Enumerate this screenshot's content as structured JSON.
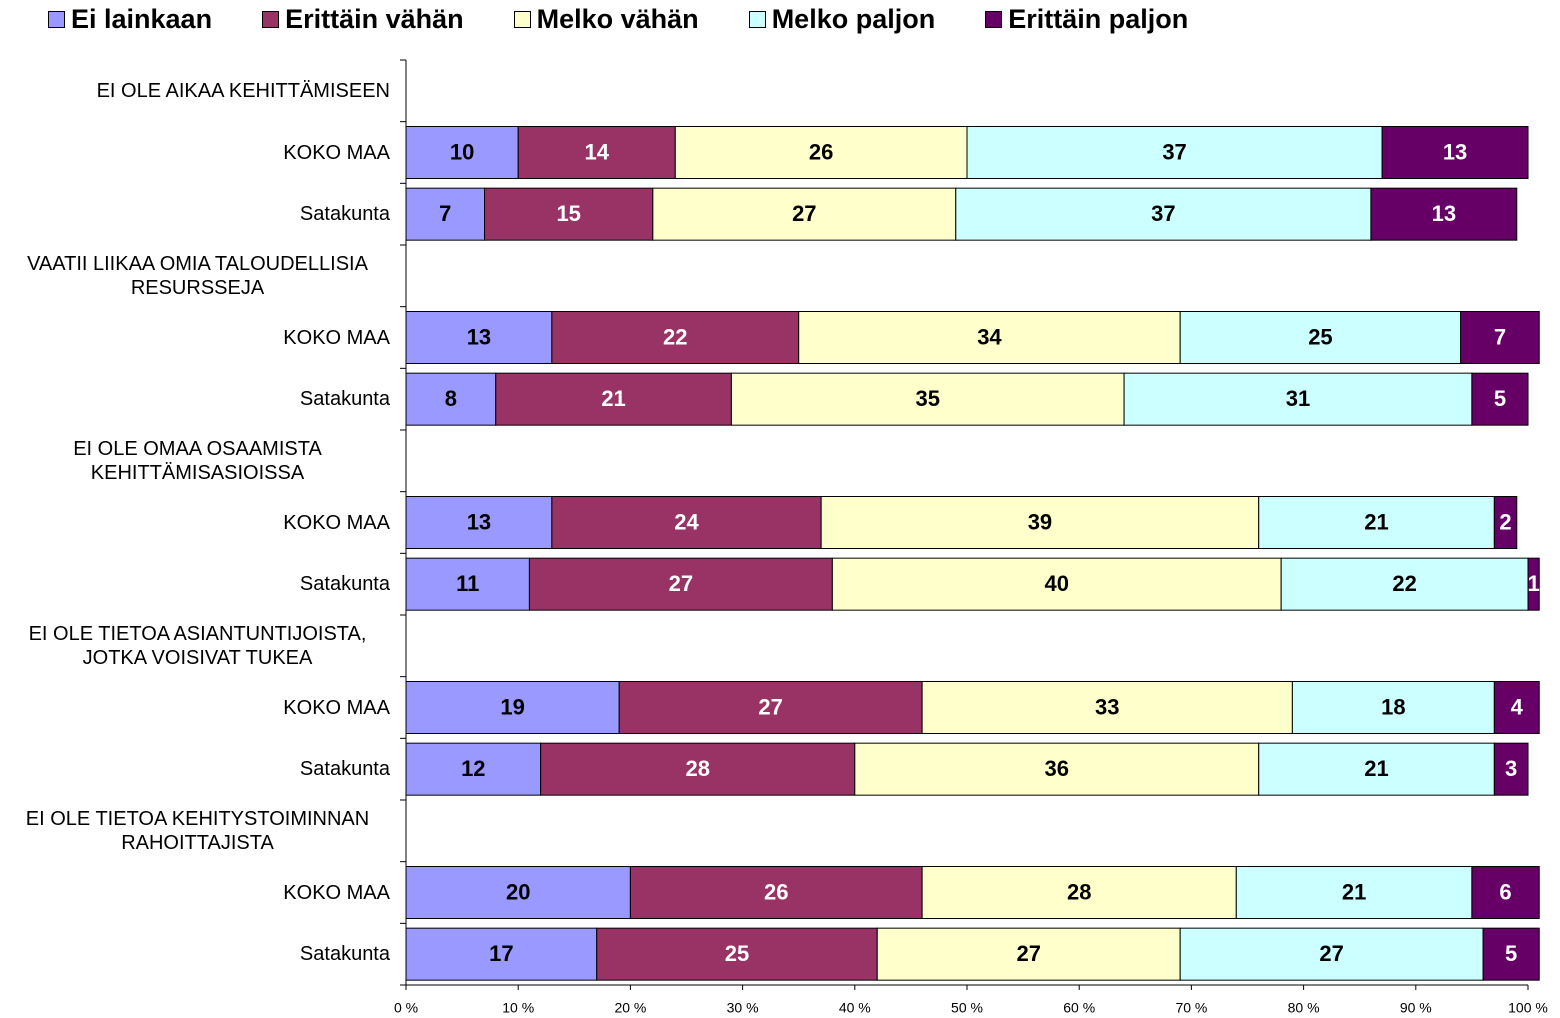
{
  "chart_data": {
    "type": "stacked_barh",
    "categories": [
      "EI OLE AIKAA KEHITTÄMISEEN",
      "KOKO MAA",
      "Satakunta",
      "VAATII LIIKAA OMIA TALOUDELLISIA RESURSSEJA",
      "KOKO MAA",
      "Satakunta",
      "EI OLE OMAA OSAAMISTA KEHITTÄMISASIOISSA",
      "KOKO MAA",
      "Satakunta",
      "EI OLE TIETOA ASIANTUNTIJOISTA, JOTKA VOISIVAT TUKEA",
      "KOKO MAA",
      "Satakunta",
      "EI OLE TIETOA KEHITYSTOIMINNAN RAHOITTAJISTA",
      "KOKO MAA",
      "Satakunta"
    ],
    "series": [
      {
        "name": "Ei lainkaan",
        "color": "#9999ff",
        "values": [
          null,
          10,
          7,
          null,
          13,
          8,
          null,
          13,
          11,
          null,
          19,
          12,
          null,
          20,
          17
        ]
      },
      {
        "name": "Erittäin vähän",
        "color": "#993366",
        "values": [
          null,
          14,
          15,
          null,
          22,
          21,
          null,
          24,
          27,
          null,
          27,
          28,
          null,
          26,
          25
        ]
      },
      {
        "name": "Melko vähän",
        "color": "#ffffcc",
        "values": [
          null,
          26,
          27,
          null,
          34,
          35,
          null,
          39,
          40,
          null,
          33,
          36,
          null,
          28,
          27
        ]
      },
      {
        "name": "Melko paljon",
        "color": "#ccffff",
        "values": [
          null,
          37,
          37,
          null,
          25,
          31,
          null,
          21,
          22,
          null,
          18,
          21,
          null,
          21,
          27
        ]
      },
      {
        "name": "Erittäin paljon",
        "color": "#660066",
        "values": [
          null,
          13,
          13,
          null,
          7,
          5,
          null,
          2,
          1,
          null,
          4,
          3,
          null,
          6,
          5
        ]
      }
    ],
    "xlim": [
      0,
      100
    ],
    "xticks": [
      {
        "value": 0,
        "label": "0 %"
      },
      {
        "value": 10,
        "label": "10 %"
      },
      {
        "value": 20,
        "label": "20 %"
      },
      {
        "value": 30,
        "label": "30 %"
      },
      {
        "value": 40,
        "label": "40 %"
      },
      {
        "value": 50,
        "label": "50 %"
      },
      {
        "value": 60,
        "label": "60 %"
      },
      {
        "value": 70,
        "label": "70 %"
      },
      {
        "value": 80,
        "label": "80 %"
      },
      {
        "value": 90,
        "label": "90 %"
      },
      {
        "value": 100,
        "label": "100 %"
      }
    ],
    "legend": "top"
  }
}
